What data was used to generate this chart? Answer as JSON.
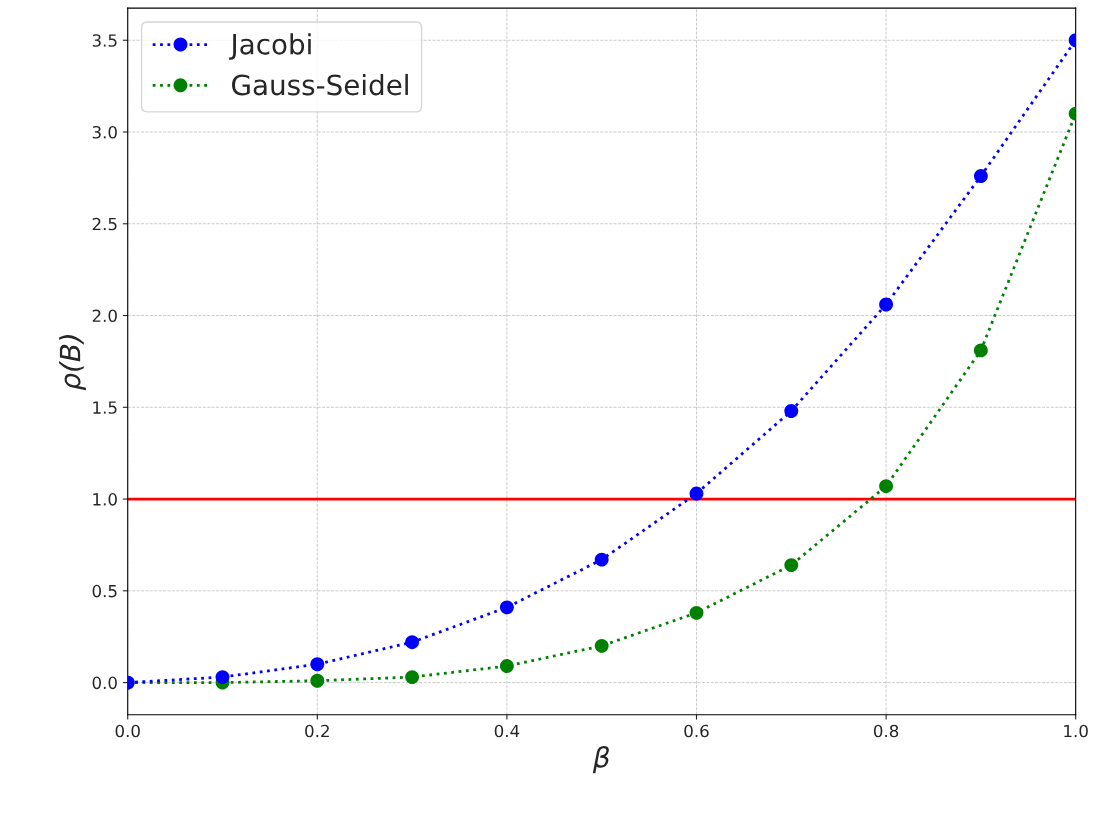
{
  "chart_data": {
    "type": "line",
    "xlabel": "β",
    "ylabel": "ρ(B)",
    "x": [
      0.0,
      0.1,
      0.2,
      0.3,
      0.4,
      0.5,
      0.6,
      0.7,
      0.8,
      0.9,
      1.0
    ],
    "series": [
      {
        "name": "Jacobi",
        "color": "#0000ff",
        "values": [
          0.0,
          0.03,
          0.1,
          0.22,
          0.41,
          0.67,
          1.03,
          1.48,
          2.06,
          2.76,
          3.5
        ]
      },
      {
        "name": "Gauss-Seidel",
        "color": "#008000",
        "values": [
          0.0,
          0.0,
          0.01,
          0.03,
          0.09,
          0.2,
          0.38,
          0.64,
          1.07,
          1.81,
          3.1
        ]
      }
    ],
    "xlim": [
      0.0,
      1.0
    ],
    "ylim": [
      -0.175,
      3.675
    ],
    "xticks": [
      {
        "value": 0,
        "label": "0.0"
      },
      0.2,
      0.4,
      0.6,
      0.8,
      {
        "value": 1,
        "label": "1.0"
      }
    ],
    "yticks": [
      {
        "value": 0,
        "label": "0.0"
      },
      0.5,
      {
        "value": 1,
        "label": "1.0"
      },
      1.5,
      {
        "value": 2,
        "label": "2.0"
      },
      2.5,
      {
        "value": 3,
        "label": "3.0"
      },
      3.5
    ],
    "ref_lines": [
      {
        "axis": "y",
        "value": 1.0,
        "color": "#ff0000",
        "line_style": "solid"
      }
    ],
    "grid": true,
    "legend": "top left",
    "marker": "circle",
    "line_style": "dotted"
  }
}
